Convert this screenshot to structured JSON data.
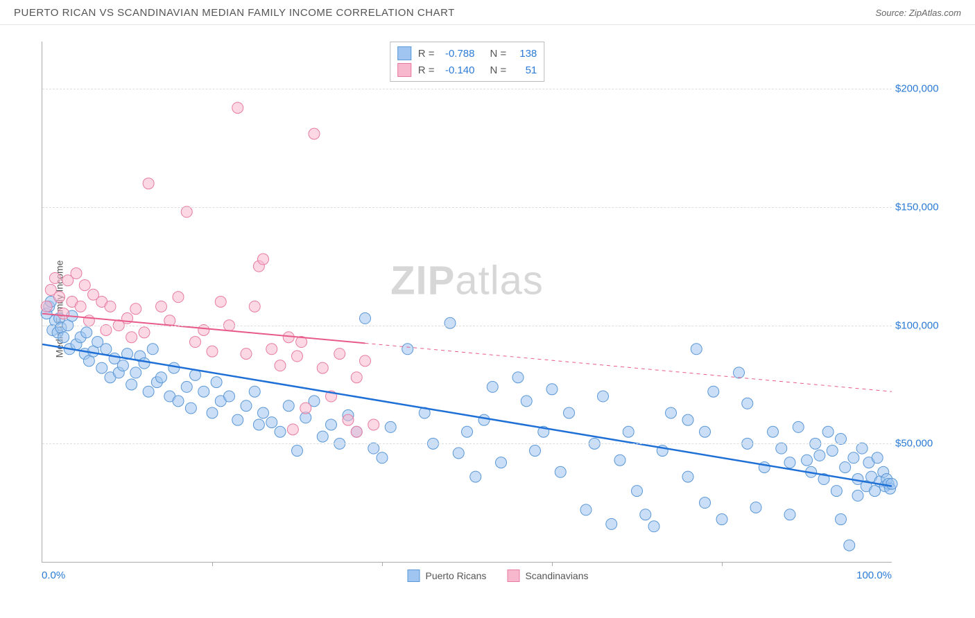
{
  "header": {
    "title": "PUERTO RICAN VS SCANDINAVIAN MEDIAN FAMILY INCOME CORRELATION CHART",
    "source_prefix": "Source: ",
    "source_name": "ZipAtlas.com"
  },
  "watermark": {
    "zip": "ZIP",
    "atlas": "atlas"
  },
  "chart": {
    "type": "scatter",
    "ylabel": "Median Family Income",
    "xlim": [
      0,
      100
    ],
    "ylim": [
      0,
      220000
    ],
    "xticks": [
      0,
      20,
      40,
      60,
      80,
      100
    ],
    "xticklabels": {
      "left": "0.0%",
      "right": "100.0%"
    },
    "yticks": [
      50000,
      100000,
      150000,
      200000
    ],
    "yticklabels": [
      "$50,000",
      "$100,000",
      "$150,000",
      "$200,000"
    ],
    "grid_color": "#dddddd",
    "axis_color": "#aaaaaa",
    "ytick_label_color": "#2b7bd6",
    "xtick_label_color": "#2b7bd6",
    "background_color": "#ffffff",
    "marker_radius": 8,
    "marker_opacity": 0.55,
    "series": [
      {
        "name": "Puerto Ricans",
        "fill_color": "#9fc5f0",
        "stroke_color": "#5a97d6",
        "trend_color": "#1e6fd6",
        "trend_width": 2.5,
        "trend": {
          "x1": 0,
          "y1": 92000,
          "x2": 100,
          "y2": 32000,
          "solid_until": 100
        },
        "R": "-0.788",
        "N": "138",
        "points": [
          [
            0.5,
            105000
          ],
          [
            0.8,
            108000
          ],
          [
            1,
            110000
          ],
          [
            1.2,
            98000
          ],
          [
            1.5,
            102000
          ],
          [
            1.8,
            97000
          ],
          [
            2,
            103000
          ],
          [
            2.2,
            99000
          ],
          [
            2.5,
            95000
          ],
          [
            3,
            100000
          ],
          [
            3.2,
            90000
          ],
          [
            3.5,
            104000
          ],
          [
            4,
            92000
          ],
          [
            4.5,
            95000
          ],
          [
            5,
            88000
          ],
          [
            5.2,
            97000
          ],
          [
            5.5,
            85000
          ],
          [
            6,
            89000
          ],
          [
            6.5,
            93000
          ],
          [
            7,
            82000
          ],
          [
            7.5,
            90000
          ],
          [
            8,
            78000
          ],
          [
            8.5,
            86000
          ],
          [
            9,
            80000
          ],
          [
            9.5,
            83000
          ],
          [
            10,
            88000
          ],
          [
            10.5,
            75000
          ],
          [
            11,
            80000
          ],
          [
            11.5,
            87000
          ],
          [
            12,
            84000
          ],
          [
            12.5,
            72000
          ],
          [
            13,
            90000
          ],
          [
            13.5,
            76000
          ],
          [
            14,
            78000
          ],
          [
            15,
            70000
          ],
          [
            15.5,
            82000
          ],
          [
            16,
            68000
          ],
          [
            17,
            74000
          ],
          [
            17.5,
            65000
          ],
          [
            18,
            79000
          ],
          [
            19,
            72000
          ],
          [
            20,
            63000
          ],
          [
            20.5,
            76000
          ],
          [
            21,
            68000
          ],
          [
            22,
            70000
          ],
          [
            23,
            60000
          ],
          [
            24,
            66000
          ],
          [
            25,
            72000
          ],
          [
            25.5,
            58000
          ],
          [
            26,
            63000
          ],
          [
            27,
            59000
          ],
          [
            28,
            55000
          ],
          [
            29,
            66000
          ],
          [
            30,
            47000
          ],
          [
            31,
            61000
          ],
          [
            32,
            68000
          ],
          [
            33,
            53000
          ],
          [
            34,
            58000
          ],
          [
            35,
            50000
          ],
          [
            36,
            62000
          ],
          [
            37,
            55000
          ],
          [
            38,
            103000
          ],
          [
            39,
            48000
          ],
          [
            40,
            44000
          ],
          [
            41,
            57000
          ],
          [
            43,
            90000
          ],
          [
            45,
            63000
          ],
          [
            46,
            50000
          ],
          [
            48,
            101000
          ],
          [
            49,
            46000
          ],
          [
            50,
            55000
          ],
          [
            51,
            36000
          ],
          [
            52,
            60000
          ],
          [
            53,
            74000
          ],
          [
            54,
            42000
          ],
          [
            56,
            78000
          ],
          [
            57,
            68000
          ],
          [
            58,
            47000
          ],
          [
            59,
            55000
          ],
          [
            60,
            73000
          ],
          [
            61,
            38000
          ],
          [
            62,
            63000
          ],
          [
            64,
            22000
          ],
          [
            65,
            50000
          ],
          [
            66,
            70000
          ],
          [
            67,
            16000
          ],
          [
            68,
            43000
          ],
          [
            69,
            55000
          ],
          [
            70,
            30000
          ],
          [
            71,
            20000
          ],
          [
            72,
            15000
          ],
          [
            73,
            47000
          ],
          [
            74,
            63000
          ],
          [
            76,
            36000
          ],
          [
            77,
            90000
          ],
          [
            78,
            25000
          ],
          [
            79,
            72000
          ],
          [
            80,
            18000
          ],
          [
            82,
            80000
          ],
          [
            83,
            67000
          ],
          [
            84,
            23000
          ],
          [
            85,
            40000
          ],
          [
            86,
            55000
          ],
          [
            87,
            48000
          ],
          [
            88,
            20000
          ],
          [
            89,
            57000
          ],
          [
            90,
            43000
          ],
          [
            90.5,
            38000
          ],
          [
            91,
            50000
          ],
          [
            91.5,
            45000
          ],
          [
            92,
            35000
          ],
          [
            92.5,
            55000
          ],
          [
            93,
            47000
          ],
          [
            93.5,
            30000
          ],
          [
            94,
            52000
          ],
          [
            94.5,
            40000
          ],
          [
            95,
            7000
          ],
          [
            95.5,
            44000
          ],
          [
            96,
            35000
          ],
          [
            96.5,
            48000
          ],
          [
            97,
            32000
          ],
          [
            97.3,
            42000
          ],
          [
            97.6,
            36000
          ],
          [
            98,
            30000
          ],
          [
            98.3,
            44000
          ],
          [
            98.6,
            34000
          ],
          [
            99,
            38000
          ],
          [
            99.2,
            32000
          ],
          [
            99.4,
            35000
          ],
          [
            99.6,
            33000
          ],
          [
            99.8,
            31000
          ],
          [
            100,
            33000
          ],
          [
            94,
            18000
          ],
          [
            96,
            28000
          ],
          [
            88,
            42000
          ],
          [
            83,
            50000
          ],
          [
            78,
            55000
          ],
          [
            76,
            60000
          ]
        ]
      },
      {
        "name": "Scandinavians",
        "fill_color": "#f7b8cd",
        "stroke_color": "#e77ba3",
        "trend_color": "#e85a8a",
        "trend_width": 2,
        "trend": {
          "x1": 0,
          "y1": 105000,
          "x2": 100,
          "y2": 72000,
          "solid_until": 38
        },
        "R": "-0.140",
        "N": "51",
        "points": [
          [
            0.5,
            108000
          ],
          [
            1,
            115000
          ],
          [
            1.5,
            120000
          ],
          [
            2,
            112000
          ],
          [
            2.5,
            105000
          ],
          [
            3,
            119000
          ],
          [
            3.5,
            110000
          ],
          [
            4,
            122000
          ],
          [
            4.5,
            108000
          ],
          [
            5,
            117000
          ],
          [
            5.5,
            102000
          ],
          [
            6,
            113000
          ],
          [
            7,
            110000
          ],
          [
            7.5,
            98000
          ],
          [
            8,
            108000
          ],
          [
            9,
            100000
          ],
          [
            10,
            103000
          ],
          [
            10.5,
            95000
          ],
          [
            11,
            107000
          ],
          [
            12,
            97000
          ],
          [
            12.5,
            160000
          ],
          [
            14,
            108000
          ],
          [
            15,
            102000
          ],
          [
            16,
            112000
          ],
          [
            17,
            148000
          ],
          [
            18,
            93000
          ],
          [
            19,
            98000
          ],
          [
            20,
            89000
          ],
          [
            21,
            110000
          ],
          [
            22,
            100000
          ],
          [
            23,
            192000
          ],
          [
            24,
            88000
          ],
          [
            25,
            108000
          ],
          [
            25.5,
            125000
          ],
          [
            26,
            128000
          ],
          [
            27,
            90000
          ],
          [
            28,
            83000
          ],
          [
            29,
            95000
          ],
          [
            29.5,
            56000
          ],
          [
            30,
            87000
          ],
          [
            30.5,
            93000
          ],
          [
            31,
            65000
          ],
          [
            32,
            181000
          ],
          [
            33,
            82000
          ],
          [
            34,
            70000
          ],
          [
            35,
            88000
          ],
          [
            36,
            60000
          ],
          [
            37,
            78000
          ],
          [
            38,
            85000
          ],
          [
            39,
            58000
          ],
          [
            37,
            55000
          ]
        ]
      }
    ],
    "bottom_legend": [
      {
        "label": "Puerto Ricans",
        "fill": "#9fc5f0",
        "stroke": "#5a97d6"
      },
      {
        "label": "Scandinavians",
        "fill": "#f7b8cd",
        "stroke": "#e77ba3"
      }
    ],
    "stat_box": {
      "rows": [
        {
          "fill": "#9fc5f0",
          "stroke": "#5a97d6",
          "R_label": "R =",
          "R": "-0.788",
          "N_label": "N =",
          "N": "138"
        },
        {
          "fill": "#f7b8cd",
          "stroke": "#e77ba3",
          "R_label": "R =",
          "R": "-0.140",
          "N_label": "N =",
          "N": "  51"
        }
      ]
    }
  }
}
